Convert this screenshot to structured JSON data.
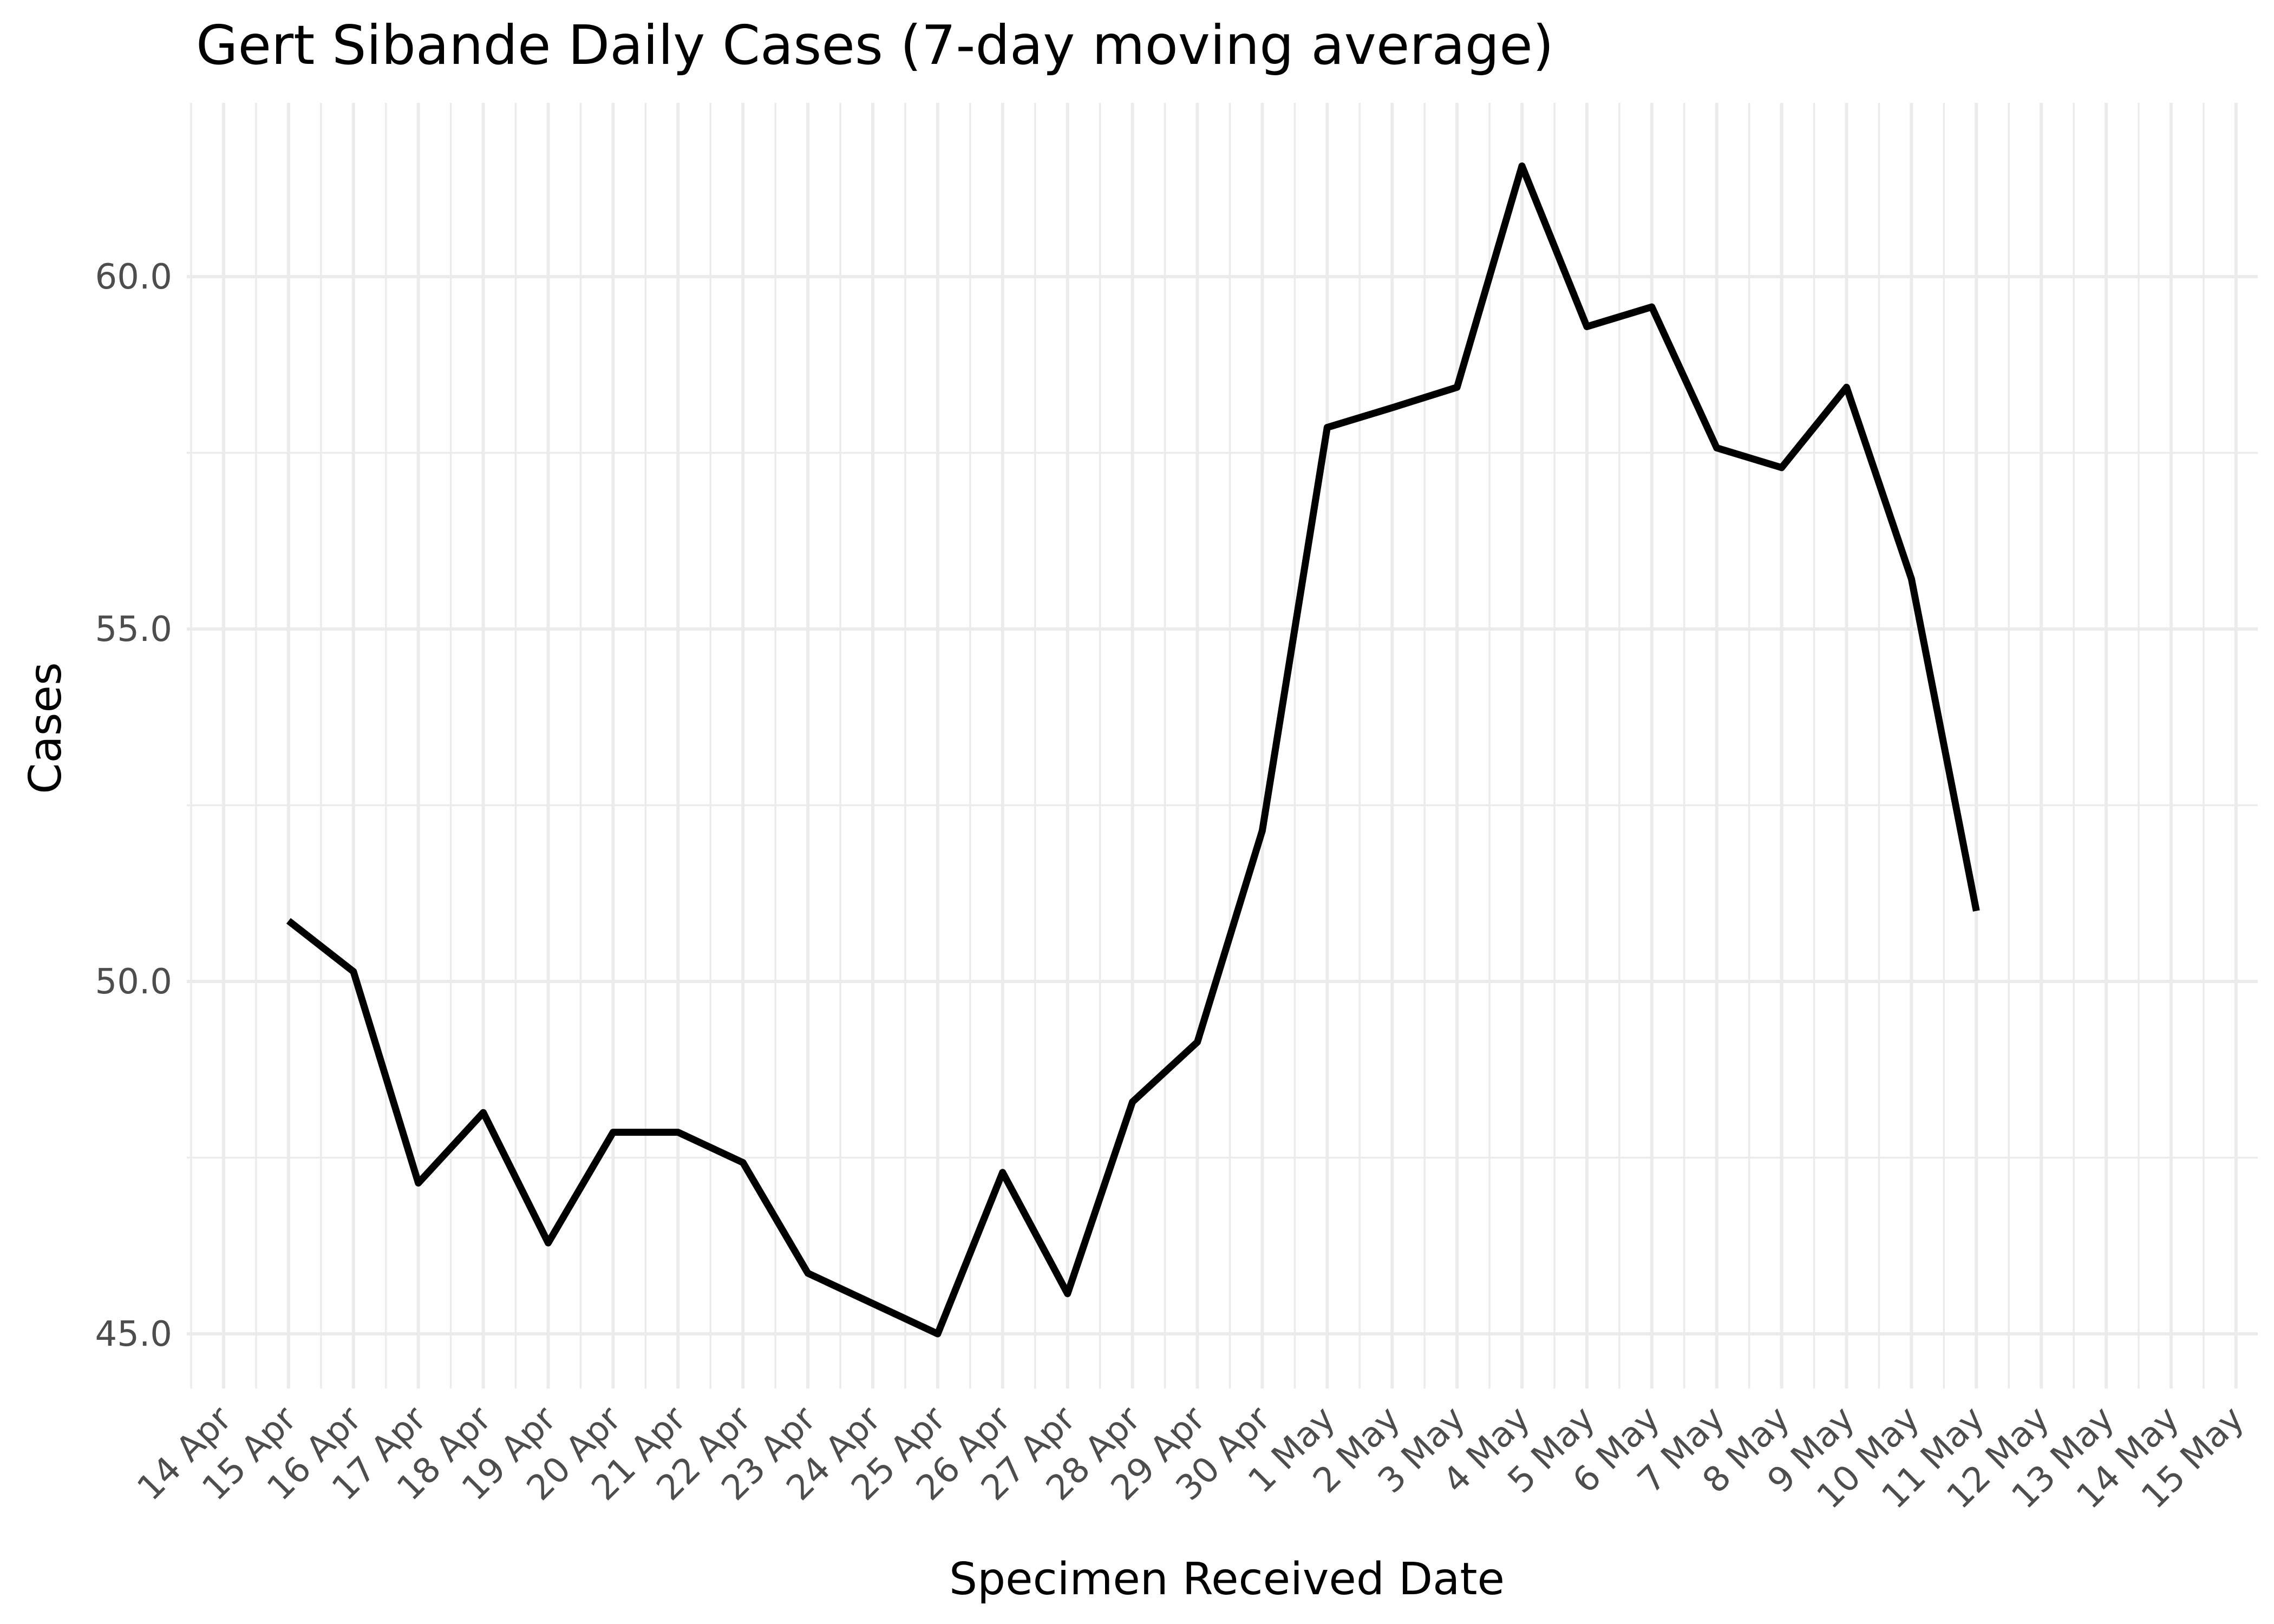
{
  "chart_data": {
    "type": "line",
    "title": "Gert Sibande Daily Cases (7-day moving average)",
    "xlabel": "Specimen Received Date",
    "ylabel": "Cases",
    "x_ticks": [
      "14 Apr",
      "15 Apr",
      "16 Apr",
      "17 Apr",
      "18 Apr",
      "19 Apr",
      "20 Apr",
      "21 Apr",
      "22 Apr",
      "23 Apr",
      "24 Apr",
      "25 Apr",
      "26 Apr",
      "27 Apr",
      "28 Apr",
      "29 Apr",
      "30 Apr",
      "1 May",
      "2 May",
      "3 May",
      "4 May",
      "5 May",
      "6 May",
      "7 May",
      "8 May",
      "9 May",
      "10 May",
      "11 May",
      "12 May",
      "13 May",
      "14 May",
      "15 May"
    ],
    "y_ticks": [
      45.0,
      50.0,
      55.0,
      60.0
    ],
    "y_tick_labels": [
      "45.0",
      "50.0",
      "55.0",
      "60.0"
    ],
    "xlim": [
      "14 Apr",
      "15 May"
    ],
    "ylim": [
      44.2,
      61.8
    ],
    "grid": true,
    "legend": "none",
    "series": [
      {
        "color": "#000000",
        "x": [
          "15 Apr",
          "16 Apr",
          "17 Apr",
          "18 Apr",
          "19 Apr",
          "20 Apr",
          "21 Apr",
          "22 Apr",
          "23 Apr",
          "24 Apr",
          "25 Apr",
          "26 Apr",
          "27 Apr",
          "28 Apr",
          "29 Apr",
          "30 Apr",
          "1 May",
          "2 May",
          "3 May",
          "4 May",
          "5 May",
          "6 May",
          "7 May",
          "8 May",
          "9 May",
          "10 May",
          "11 May"
        ],
        "values": [
          50.86,
          50.14,
          47.14,
          48.14,
          46.29,
          47.86,
          47.86,
          47.43,
          45.86,
          45.43,
          45.0,
          47.29,
          45.57,
          48.29,
          49.14,
          52.14,
          57.86,
          58.14,
          58.43,
          61.57,
          59.29,
          59.57,
          57.57,
          57.29,
          58.43,
          55.71,
          51.0
        ]
      }
    ]
  }
}
